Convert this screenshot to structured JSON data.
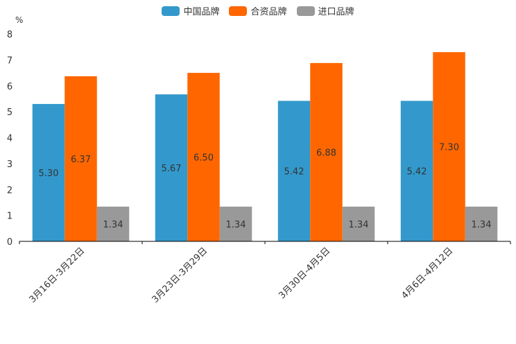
{
  "chart_data": {
    "type": "bar",
    "ylabel": "%",
    "ylim": [
      0,
      8
    ],
    "yticks": [
      0,
      1,
      2,
      3,
      4,
      5,
      6,
      7,
      8
    ],
    "categories": [
      "3月16日-3月22日",
      "3月23日-3月29日",
      "3月30日-4月5日",
      "4月6日-4月12日"
    ],
    "series": [
      {
        "name": "中国品牌",
        "color": "#3399cc",
        "values": [
          5.3,
          5.67,
          5.42,
          5.42
        ],
        "labels": [
          "5.30",
          "5.67",
          "5.42",
          "5.42"
        ]
      },
      {
        "name": "合资品牌",
        "color": "#ff6600",
        "values": [
          6.37,
          6.5,
          6.88,
          7.3
        ],
        "labels": [
          "6.37",
          "6.50",
          "6.88",
          "7.30"
        ]
      },
      {
        "name": "进口品牌",
        "color": "#999999",
        "values": [
          1.34,
          1.34,
          1.34,
          1.34
        ],
        "labels": [
          "1.34",
          "1.34",
          "1.34",
          "1.34"
        ]
      }
    ],
    "grid": false,
    "legend_position": "top-center"
  }
}
